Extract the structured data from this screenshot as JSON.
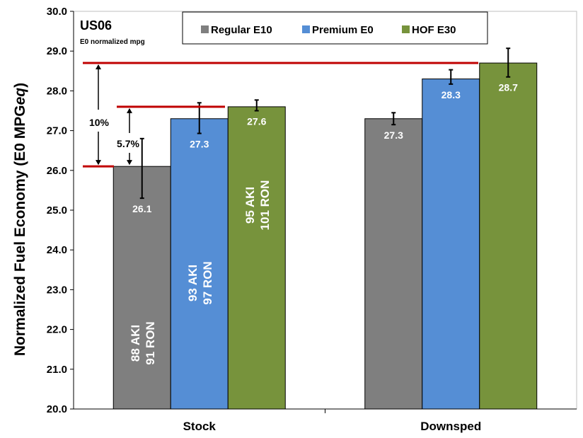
{
  "chart_data": {
    "type": "bar",
    "title": "US06",
    "subtitle": "E0 normalized mpg",
    "ylabel": "Normalized Fuel Economy (E0 MPG",
    "ylabel_italic": "eq",
    "ylabel_close": ")",
    "xlabel": "",
    "ylim": [
      20.0,
      30.0
    ],
    "ytick_step": 1.0,
    "ytick_labels": [
      "20.0",
      "21.0",
      "22.0",
      "23.0",
      "24.0",
      "25.0",
      "26.0",
      "27.0",
      "28.0",
      "29.0",
      "30.0"
    ],
    "grid": false,
    "legend_position": "top-center",
    "categories": [
      "Stock",
      "Downsped"
    ],
    "series": [
      {
        "name": "Regular E10",
        "color": "#7f7f7f",
        "values": [
          26.1,
          27.3
        ],
        "err_low": [
          25.3,
          27.15
        ],
        "err_high": [
          26.8,
          27.45
        ],
        "labels": [
          "26.1",
          "27.3"
        ],
        "fuel_label": [
          "88 AKI",
          "91 RON"
        ]
      },
      {
        "name": "Premium E0",
        "color": "#558ed5",
        "values": [
          27.3,
          28.3
        ],
        "err_low": [
          26.93,
          28.17
        ],
        "err_high": [
          27.7,
          28.53
        ],
        "labels": [
          "27.3",
          "28.3"
        ],
        "fuel_label": [
          "93 AKI",
          "97 RON"
        ]
      },
      {
        "name": "HOF E30",
        "color": "#77933c",
        "values": [
          27.6,
          28.7
        ],
        "err_low": [
          27.5,
          28.35
        ],
        "err_high": [
          27.77,
          29.07
        ],
        "labels": [
          "27.6",
          "28.7"
        ],
        "fuel_label": [
          "95 AKI",
          "101 RON"
        ]
      }
    ],
    "annotations": [
      {
        "text": "10%",
        "from": 26.1,
        "to": 28.7
      },
      {
        "text": "5.7%",
        "from": 26.1,
        "to": 27.6
      }
    ],
    "reference_line_color": "#c00000"
  }
}
